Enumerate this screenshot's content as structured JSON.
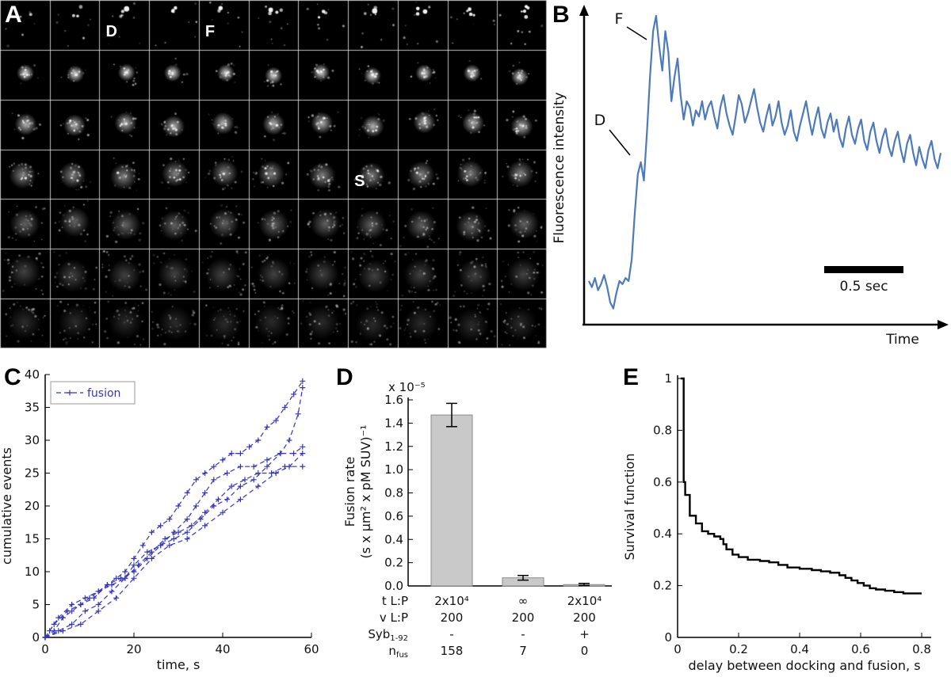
{
  "figure": {
    "panel_labels": {
      "a": "A",
      "b": "B",
      "c": "C",
      "d": "D",
      "e": "E"
    }
  },
  "colors": {
    "trace_blue": "#4d7ab8",
    "series_blue": "#3434bb",
    "bar_fill": "#c9c9c9",
    "bar_edge": "#8a8a8a",
    "axis_black": "#000000"
  },
  "panel_a": {
    "rows": 7,
    "cols": 11,
    "frame_annotations": [
      {
        "label": "D",
        "col": 2,
        "row": 0
      },
      {
        "label": "F",
        "col": 4,
        "row": 0
      },
      {
        "label": "S",
        "col": 7,
        "row": 3
      }
    ]
  },
  "chart_data": [
    {
      "panel": "B",
      "type": "line",
      "ylabel": "Fluorescence intensity",
      "xlabel": "Time",
      "scale_bar_label": "0.5 sec",
      "annotations": [
        {
          "label": "F"
        },
        {
          "label": "D"
        }
      ],
      "axis_style": "arrows, no ticks",
      "y_values": [
        0.13,
        0.11,
        0.14,
        0.1,
        0.12,
        0.15,
        0.11,
        0.06,
        0.04,
        0.09,
        0.13,
        0.12,
        0.14,
        0.13,
        0.2,
        0.35,
        0.48,
        0.52,
        0.46,
        0.62,
        0.8,
        0.95,
        1.0,
        0.9,
        0.82,
        0.95,
        0.88,
        0.72,
        0.8,
        0.86,
        0.74,
        0.66,
        0.72,
        0.7,
        0.64,
        0.69,
        0.67,
        0.72,
        0.66,
        0.7,
        0.72,
        0.67,
        0.63,
        0.7,
        0.74,
        0.68,
        0.64,
        0.61,
        0.67,
        0.74,
        0.71,
        0.65,
        0.68,
        0.72,
        0.76,
        0.7,
        0.65,
        0.62,
        0.67,
        0.71,
        0.64,
        0.67,
        0.72,
        0.65,
        0.61,
        0.64,
        0.69,
        0.62,
        0.59,
        0.64,
        0.68,
        0.72,
        0.66,
        0.61,
        0.66,
        0.7,
        0.63,
        0.6,
        0.65,
        0.68,
        0.62,
        0.66,
        0.6,
        0.57,
        0.63,
        0.67,
        0.61,
        0.58,
        0.63,
        0.66,
        0.59,
        0.56,
        0.62,
        0.65,
        0.59,
        0.55,
        0.6,
        0.63,
        0.57,
        0.54,
        0.59,
        0.62,
        0.56,
        0.52,
        0.58,
        0.61,
        0.55,
        0.51,
        0.57,
        0.53,
        0.5,
        0.56,
        0.59,
        0.53,
        0.5,
        0.55
      ]
    },
    {
      "panel": "C",
      "type": "line",
      "xlabel": "time, s",
      "ylabel": "cumulative events",
      "xlim": [
        0,
        60
      ],
      "ylim": [
        0,
        40
      ],
      "xticks": [
        0,
        20,
        40,
        60
      ],
      "yticks": [
        0,
        5,
        10,
        15,
        20,
        25,
        30,
        35,
        40
      ],
      "legend": [
        "fusion"
      ],
      "legend_position": "upper left",
      "line_style": "dashed with plus markers",
      "series": [
        {
          "name": "trace1",
          "points": [
            [
              0,
              0
            ],
            [
              2,
              1
            ],
            [
              4,
              3
            ],
            [
              6,
              4
            ],
            [
              8,
              5
            ],
            [
              10,
              6
            ],
            [
              12,
              7
            ],
            [
              14,
              8
            ],
            [
              16,
              9
            ],
            [
              18,
              10
            ],
            [
              20,
              12
            ],
            [
              22,
              14
            ],
            [
              24,
              16
            ],
            [
              26,
              17
            ],
            [
              28,
              18
            ],
            [
              30,
              20
            ],
            [
              32,
              22
            ],
            [
              34,
              24
            ],
            [
              36,
              25
            ],
            [
              38,
              26
            ],
            [
              40,
              27
            ],
            [
              42,
              28
            ],
            [
              44,
              28
            ],
            [
              46,
              29
            ],
            [
              48,
              30
            ],
            [
              50,
              32
            ],
            [
              52,
              33
            ],
            [
              54,
              35
            ],
            [
              56,
              37
            ],
            [
              58,
              39
            ]
          ]
        },
        {
          "name": "trace2",
          "points": [
            [
              0,
              0
            ],
            [
              3,
              1
            ],
            [
              6,
              2
            ],
            [
              9,
              4
            ],
            [
              12,
              5
            ],
            [
              15,
              7
            ],
            [
              18,
              9
            ],
            [
              20,
              11
            ],
            [
              23,
              13
            ],
            [
              26,
              14
            ],
            [
              29,
              16
            ],
            [
              32,
              18
            ],
            [
              34,
              20
            ],
            [
              36,
              22
            ],
            [
              38,
              24
            ],
            [
              41,
              25
            ],
            [
              44,
              26
            ],
            [
              47,
              26
            ],
            [
              50,
              27
            ],
            [
              53,
              28
            ],
            [
              56,
              28
            ],
            [
              58,
              29
            ]
          ]
        },
        {
          "name": "trace3",
          "points": [
            [
              0,
              0
            ],
            [
              2,
              2
            ],
            [
              5,
              4
            ],
            [
              8,
              5
            ],
            [
              11,
              6
            ],
            [
              14,
              8
            ],
            [
              17,
              9
            ],
            [
              20,
              10
            ],
            [
              23,
              12
            ],
            [
              26,
              14
            ],
            [
              29,
              15
            ],
            [
              32,
              16
            ],
            [
              35,
              18
            ],
            [
              38,
              20
            ],
            [
              41,
              21
            ],
            [
              44,
              23
            ],
            [
              47,
              24
            ],
            [
              50,
              26
            ],
            [
              53,
              28
            ],
            [
              55,
              30
            ],
            [
              57,
              34
            ],
            [
              58,
              38
            ]
          ]
        },
        {
          "name": "trace4",
          "points": [
            [
              0,
              0
            ],
            [
              4,
              1
            ],
            [
              8,
              2
            ],
            [
              12,
              4
            ],
            [
              16,
              6
            ],
            [
              20,
              9
            ],
            [
              24,
              12
            ],
            [
              28,
              14
            ],
            [
              32,
              15
            ],
            [
              36,
              17
            ],
            [
              40,
              19
            ],
            [
              44,
              21
            ],
            [
              48,
              23
            ],
            [
              52,
              25
            ],
            [
              55,
              26
            ],
            [
              58,
              28
            ]
          ]
        },
        {
          "name": "trace5",
          "points": [
            [
              0,
              0
            ],
            [
              1,
              1
            ],
            [
              3,
              3
            ],
            [
              6,
              5
            ],
            [
              9,
              6
            ],
            [
              12,
              7
            ],
            [
              15,
              8
            ],
            [
              18,
              9
            ],
            [
              21,
              11
            ],
            [
              24,
              13
            ],
            [
              27,
              15
            ],
            [
              30,
              16
            ],
            [
              33,
              17
            ],
            [
              36,
              19
            ],
            [
              39,
              21
            ],
            [
              42,
              23
            ],
            [
              45,
              24
            ],
            [
              48,
              25
            ],
            [
              51,
              25
            ],
            [
              54,
              26
            ],
            [
              58,
              26
            ]
          ]
        }
      ]
    },
    {
      "panel": "D",
      "type": "bar",
      "exponent_label": "x 10⁻⁵",
      "ylabel_line1": "Fusion rate",
      "ylabel_line2": "(s x µm² x pM SUV)⁻¹",
      "ylim": [
        0,
        1.6
      ],
      "ytick_labels": [
        "0.0",
        "0.2",
        "0.4",
        "0.6",
        "0.8",
        "1.0",
        "1.2",
        "1.4",
        "1.6"
      ],
      "values": [
        1.47,
        0.07,
        0.012
      ],
      "errors": [
        0.1,
        0.02,
        0.01
      ],
      "table": {
        "rows": [
          {
            "label": "t L:P",
            "values": [
              "2x10⁴",
              "∞",
              "2x10⁴"
            ]
          },
          {
            "label": "v L:P",
            "values": [
              "200",
              "200",
              "200"
            ]
          },
          {
            "label_main": "Syb",
            "label_sub": "1-92",
            "values": [
              "-",
              "-",
              "+"
            ]
          },
          {
            "label_main": "n",
            "label_sub": "fus",
            "values": [
              "158",
              "7",
              "0"
            ]
          }
        ]
      }
    },
    {
      "panel": "E",
      "type": "line",
      "subtype": "step-survival",
      "xlabel": "delay between docking and fusion, s",
      "ylabel": "Survival function",
      "xlim": [
        0,
        0.8
      ],
      "ylim": [
        0,
        1
      ],
      "xtick_labels": [
        "0",
        "0.2",
        "0.4",
        "0.6",
        "0.8"
      ],
      "ytick_labels": [
        "0",
        "0.2",
        "0.4",
        "0.6",
        "0.8",
        "1"
      ],
      "steps": [
        [
          0.01,
          1
        ],
        [
          0.02,
          0.6
        ],
        [
          0.025,
          0.55
        ],
        [
          0.04,
          0.47
        ],
        [
          0.06,
          0.44
        ],
        [
          0.08,
          0.41
        ],
        [
          0.1,
          0.4
        ],
        [
          0.12,
          0.39
        ],
        [
          0.14,
          0.38
        ],
        [
          0.15,
          0.36
        ],
        [
          0.16,
          0.34
        ],
        [
          0.18,
          0.32
        ],
        [
          0.2,
          0.31
        ],
        [
          0.23,
          0.3
        ],
        [
          0.27,
          0.295
        ],
        [
          0.3,
          0.29
        ],
        [
          0.33,
          0.28
        ],
        [
          0.36,
          0.27
        ],
        [
          0.4,
          0.265
        ],
        [
          0.44,
          0.26
        ],
        [
          0.47,
          0.255
        ],
        [
          0.5,
          0.25
        ],
        [
          0.53,
          0.24
        ],
        [
          0.55,
          0.23
        ],
        [
          0.57,
          0.22
        ],
        [
          0.59,
          0.21
        ],
        [
          0.61,
          0.2
        ],
        [
          0.63,
          0.19
        ],
        [
          0.65,
          0.185
        ],
        [
          0.68,
          0.18
        ],
        [
          0.71,
          0.175
        ],
        [
          0.74,
          0.17
        ],
        [
          0.8,
          0.17
        ]
      ]
    }
  ]
}
